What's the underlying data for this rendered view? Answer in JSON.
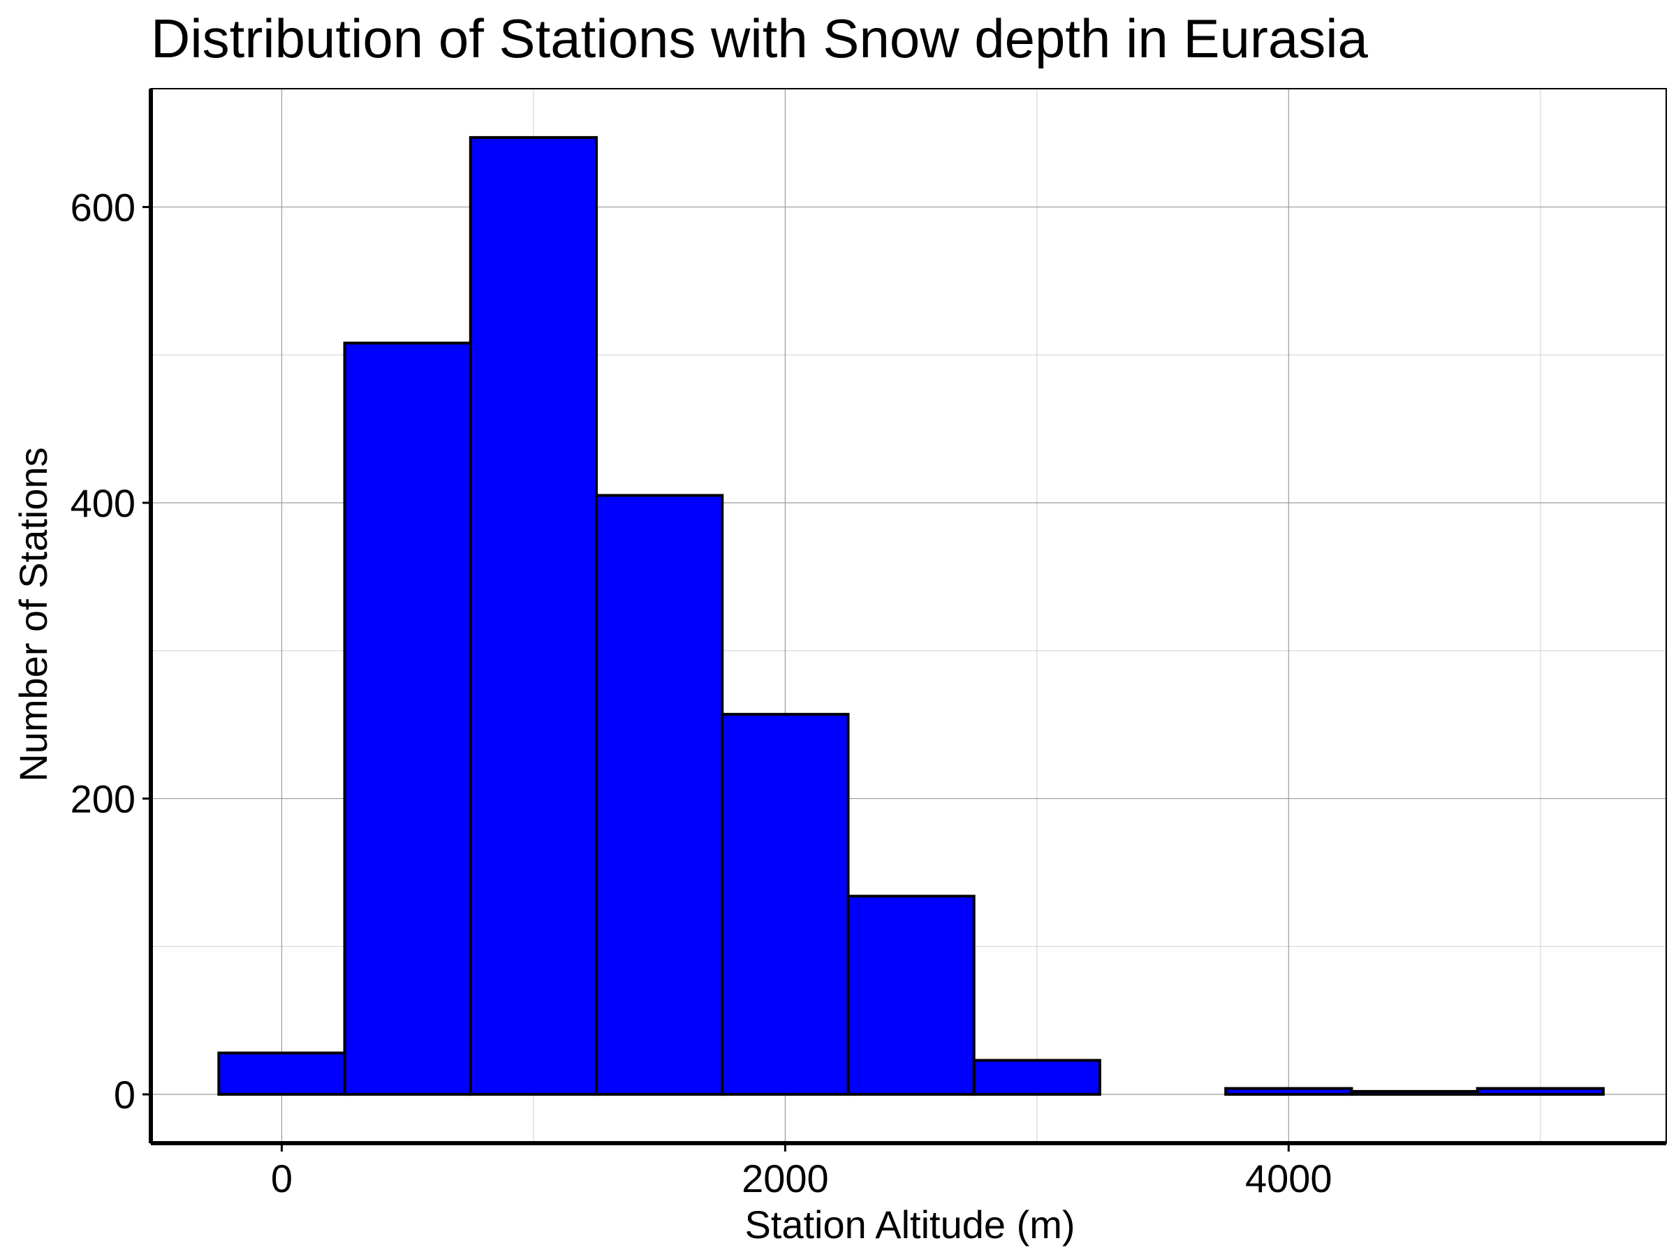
{
  "chart_data": {
    "type": "bar",
    "title": "Distribution of Stations with Snow depth in Eurasia",
    "xlabel": "Station Altitude (m)",
    "ylabel": "Number of Stations",
    "bins": [
      {
        "x0": -250,
        "x1": 250,
        "count": 28
      },
      {
        "x0": 250,
        "x1": 750,
        "count": 508
      },
      {
        "x0": 750,
        "x1": 1250,
        "count": 647
      },
      {
        "x0": 1250,
        "x1": 1750,
        "count": 405
      },
      {
        "x0": 1750,
        "x1": 2250,
        "count": 257
      },
      {
        "x0": 2250,
        "x1": 2750,
        "count": 134
      },
      {
        "x0": 2750,
        "x1": 3250,
        "count": 23
      },
      {
        "x0": 3250,
        "x1": 3750,
        "count": 0
      },
      {
        "x0": 3750,
        "x1": 4250,
        "count": 4
      },
      {
        "x0": 4250,
        "x1": 4750,
        "count": 2
      },
      {
        "x0": 4750,
        "x1": 5250,
        "count": 4
      }
    ],
    "xlim": [
      -520,
      5500
    ],
    "ylim": [
      -33,
      680
    ],
    "x_ticks": [
      0,
      2000,
      4000
    ],
    "x_minor": [
      1000,
      3000,
      5000
    ],
    "y_ticks": [
      0,
      200,
      400,
      600
    ],
    "y_minor": [
      100,
      300,
      500
    ],
    "bar_color": "#0000ff",
    "grid": true
  }
}
